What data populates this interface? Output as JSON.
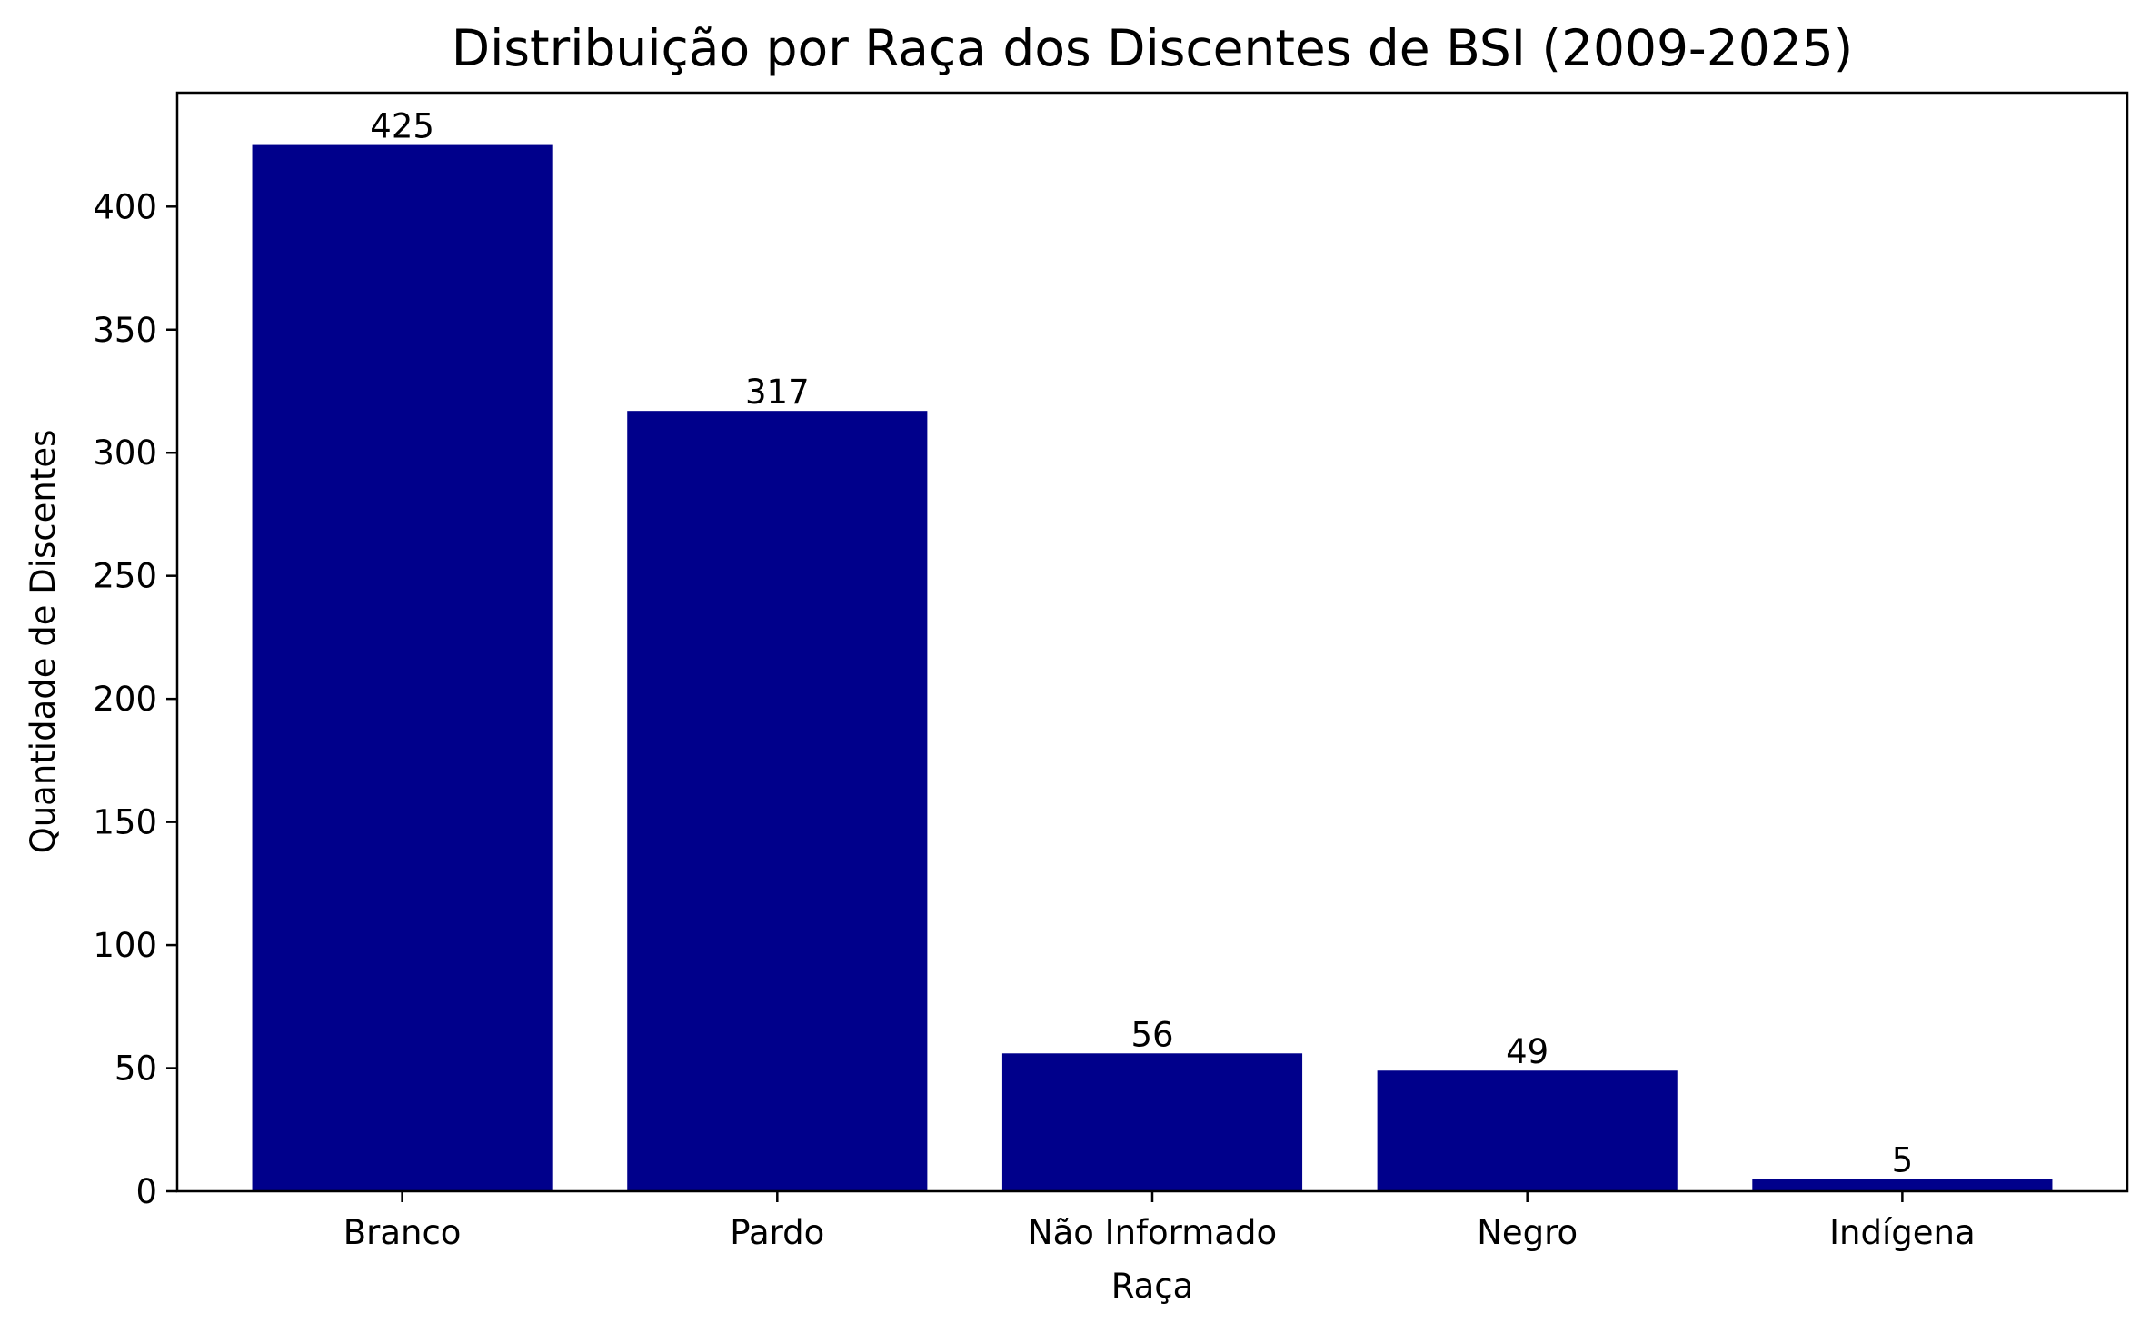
{
  "chart_data": {
    "type": "bar",
    "title": "Distribuição por Raça dos Discentes de BSI (2009-2025)",
    "xlabel": "Raça",
    "ylabel": "Quantidade de Discentes",
    "categories": [
      "Branco",
      "Pardo",
      "Não Informado",
      "Negro",
      "Indígena"
    ],
    "values": [
      425,
      317,
      56,
      49,
      5
    ],
    "ylim": [
      0,
      446.25
    ],
    "yticks": [
      0,
      50,
      100,
      150,
      200,
      250,
      300,
      350,
      400
    ],
    "bar_color": "#00008b",
    "grid": false,
    "legend": "none"
  }
}
